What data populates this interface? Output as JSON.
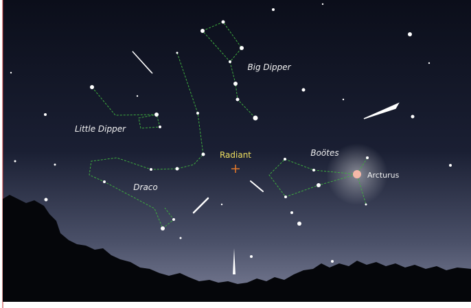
{
  "labels": {
    "big_dipper": "Big Dipper",
    "little_dipper": "Little Dipper",
    "draco": "Draco",
    "radiant": "Radiant",
    "bootes": "Boötes",
    "arcturus": "Arcturus"
  }
}
